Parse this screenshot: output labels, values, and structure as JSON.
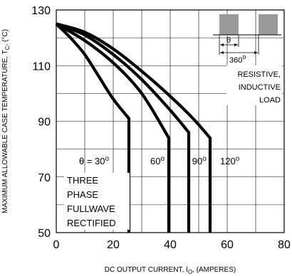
{
  "chart_data": {
    "type": "line",
    "xlabel_main": "DC OUTPUT CURRENT, I",
    "xlabel_sub": "O",
    "xlabel_tail": ", (AMPERES)",
    "ylabel_main": "MAXIMUM ALLOWABLE CASE TEMPERATURE, T",
    "ylabel_sub": "C",
    "ylabel_tail": ", (°C)",
    "xlim": [
      0,
      80
    ],
    "ylim": [
      50,
      130
    ],
    "xticks": [
      0,
      20,
      40,
      60,
      80
    ],
    "yticks": [
      50,
      70,
      90,
      110,
      130
    ],
    "grid": true,
    "series": [
      {
        "name": "θ = 30°",
        "x": [
          0,
          5,
          10,
          15,
          20,
          25.5,
          25.5
        ],
        "y": [
          125,
          120,
          114,
          106,
          98,
          91,
          50
        ]
      },
      {
        "name": "60°",
        "x": [
          0,
          10,
          20,
          30,
          39.5,
          39.5
        ],
        "y": [
          125,
          119,
          111,
          100,
          84,
          50
        ]
      },
      {
        "name": "90°",
        "x": [
          0,
          10,
          20,
          30,
          40,
          46.5,
          46.5
        ],
        "y": [
          125,
          121,
          114,
          105,
          94,
          86,
          50
        ]
      },
      {
        "name": "120°",
        "x": [
          0,
          10,
          20,
          30,
          40,
          48,
          54,
          54
        ],
        "y": [
          125,
          122,
          116,
          108,
          99,
          91,
          84,
          50
        ]
      }
    ],
    "annotations": {
      "waveform_label": "360",
      "waveform_theta": "θ",
      "load_lines": [
        "RESISTIVE,",
        "INDUCTIVE",
        "LOAD"
      ],
      "rectifier_lines": [
        "THREE",
        "PHASE",
        "FULLWAVE",
        "RECTIFIED"
      ],
      "degree_sign": "o"
    }
  }
}
